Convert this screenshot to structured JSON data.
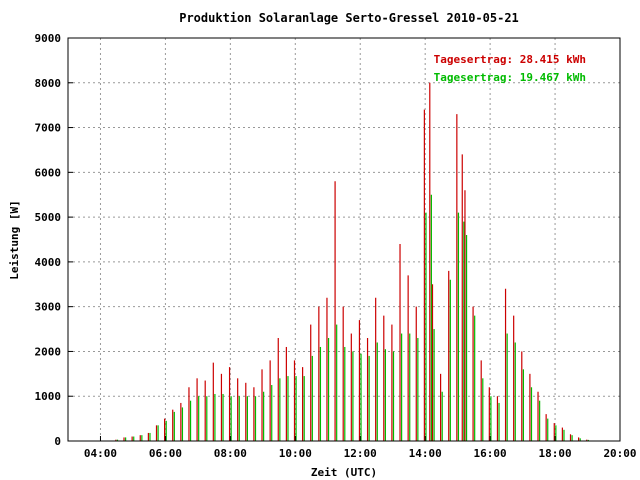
{
  "chart_data": {
    "type": "bar",
    "title": "Produktion Solaranlage Serto-Gressel 2010-05-21",
    "xlabel": "Zeit (UTC)",
    "ylabel": "Leistung [W]",
    "xlim": [
      "03:00",
      "20:00"
    ],
    "ylim": [
      0,
      9000
    ],
    "x_ticks": [
      "04:00",
      "06:00",
      "08:00",
      "10:00",
      "12:00",
      "14:00",
      "16:00",
      "18:00",
      "20:00"
    ],
    "y_ticks": [
      "0",
      "1000",
      "2000",
      "3000",
      "4000",
      "5000",
      "6000",
      "7000",
      "8000",
      "9000"
    ],
    "grid": true,
    "series": [
      {
        "name": "Tagesertrag: 28.415 kWh",
        "color": "#cc0000",
        "points": [
          [
            "04:30",
            30
          ],
          [
            "04:45",
            80
          ],
          [
            "05:00",
            100
          ],
          [
            "05:15",
            130
          ],
          [
            "05:30",
            180
          ],
          [
            "05:45",
            350
          ],
          [
            "06:00",
            500
          ],
          [
            "06:15",
            700
          ],
          [
            "06:30",
            850
          ],
          [
            "06:45",
            1200
          ],
          [
            "07:00",
            1400
          ],
          [
            "07:15",
            1350
          ],
          [
            "07:30",
            1750
          ],
          [
            "07:45",
            1500
          ],
          [
            "08:00",
            1650
          ],
          [
            "08:15",
            1400
          ],
          [
            "08:30",
            1300
          ],
          [
            "08:45",
            1200
          ],
          [
            "09:00",
            1600
          ],
          [
            "09:15",
            1800
          ],
          [
            "09:30",
            2300
          ],
          [
            "09:45",
            2100
          ],
          [
            "10:00",
            1800
          ],
          [
            "10:15",
            1650
          ],
          [
            "10:30",
            2600
          ],
          [
            "10:45",
            3000
          ],
          [
            "11:00",
            3200
          ],
          [
            "11:15",
            5800
          ],
          [
            "11:30",
            3000
          ],
          [
            "11:45",
            2400
          ],
          [
            "12:00",
            2700
          ],
          [
            "12:15",
            2300
          ],
          [
            "12:30",
            3200
          ],
          [
            "12:45",
            2800
          ],
          [
            "13:00",
            2600
          ],
          [
            "13:15",
            4400
          ],
          [
            "13:30",
            3700
          ],
          [
            "13:45",
            3000
          ],
          [
            "14:00",
            7400
          ],
          [
            "14:10",
            8000
          ],
          [
            "14:15",
            3500
          ],
          [
            "14:30",
            1500
          ],
          [
            "14:45",
            3800
          ],
          [
            "15:00",
            7300
          ],
          [
            "15:10",
            6400
          ],
          [
            "15:15",
            5600
          ],
          [
            "15:30",
            3000
          ],
          [
            "15:45",
            1800
          ],
          [
            "16:00",
            1200
          ],
          [
            "16:15",
            1000
          ],
          [
            "16:30",
            3400
          ],
          [
            "16:45",
            2800
          ],
          [
            "17:00",
            2000
          ],
          [
            "17:15",
            1500
          ],
          [
            "17:30",
            1100
          ],
          [
            "17:45",
            600
          ],
          [
            "18:00",
            400
          ],
          [
            "18:15",
            300
          ],
          [
            "18:30",
            150
          ],
          [
            "18:45",
            80
          ],
          [
            "19:00",
            30
          ]
        ]
      },
      {
        "name": "Tagesertrag: 19.467 kWh",
        "color": "#00bb00",
        "points": [
          [
            "04:30",
            30
          ],
          [
            "04:45",
            80
          ],
          [
            "05:00",
            100
          ],
          [
            "05:15",
            130
          ],
          [
            "05:30",
            180
          ],
          [
            "05:45",
            350
          ],
          [
            "06:00",
            450
          ],
          [
            "06:15",
            650
          ],
          [
            "06:30",
            750
          ],
          [
            "06:45",
            900
          ],
          [
            "07:00",
            1000
          ],
          [
            "07:15",
            1000
          ],
          [
            "07:30",
            1050
          ],
          [
            "07:45",
            1050
          ],
          [
            "08:00",
            1000
          ],
          [
            "08:15",
            1000
          ],
          [
            "08:30",
            1000
          ],
          [
            "08:45",
            1000
          ],
          [
            "09:00",
            1100
          ],
          [
            "09:15",
            1250
          ],
          [
            "09:30",
            1400
          ],
          [
            "09:45",
            1450
          ],
          [
            "10:00",
            1450
          ],
          [
            "10:15",
            1450
          ],
          [
            "10:30",
            1900
          ],
          [
            "10:45",
            2100
          ],
          [
            "11:00",
            2300
          ],
          [
            "11:15",
            2600
          ],
          [
            "11:30",
            2100
          ],
          [
            "11:45",
            2000
          ],
          [
            "12:00",
            1950
          ],
          [
            "12:15",
            1900
          ],
          [
            "12:30",
            2200
          ],
          [
            "12:45",
            2050
          ],
          [
            "13:00",
            2000
          ],
          [
            "13:15",
            2400
          ],
          [
            "13:30",
            2400
          ],
          [
            "13:45",
            2300
          ],
          [
            "14:00",
            5100
          ],
          [
            "14:10",
            5500
          ],
          [
            "14:15",
            2500
          ],
          [
            "14:30",
            1100
          ],
          [
            "14:45",
            3600
          ],
          [
            "15:00",
            5100
          ],
          [
            "15:10",
            4900
          ],
          [
            "15:15",
            4600
          ],
          [
            "15:30",
            2800
          ],
          [
            "15:45",
            1400
          ],
          [
            "16:00",
            1000
          ],
          [
            "16:15",
            850
          ],
          [
            "16:30",
            2400
          ],
          [
            "16:45",
            2200
          ],
          [
            "17:00",
            1600
          ],
          [
            "17:15",
            1200
          ],
          [
            "17:30",
            900
          ],
          [
            "17:45",
            500
          ],
          [
            "18:00",
            350
          ],
          [
            "18:15",
            250
          ],
          [
            "18:30",
            130
          ],
          [
            "18:45",
            60
          ],
          [
            "19:00",
            25
          ]
        ]
      }
    ]
  }
}
